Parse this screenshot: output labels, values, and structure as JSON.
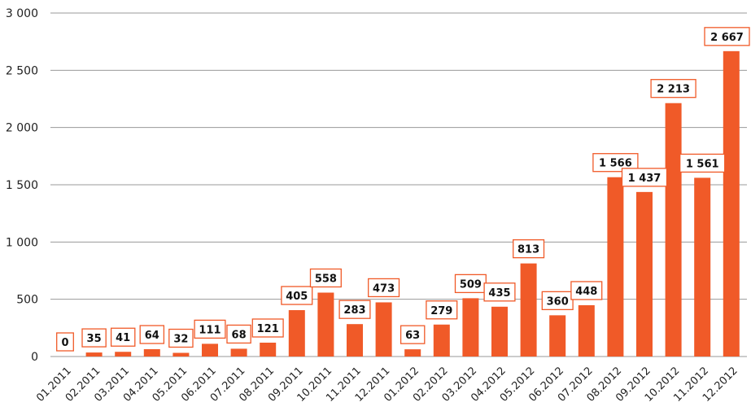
{
  "chart_data": {
    "type": "bar",
    "title": "",
    "xlabel": "",
    "ylabel": "",
    "categories": [
      "01.2011",
      "02.2011",
      "03.2011",
      "04.2011",
      "05.2011",
      "06.2011",
      "07.2011",
      "08.2011",
      "09.2011",
      "10.2011",
      "11.2011",
      "12.2011",
      "01.2012",
      "02.2012",
      "03.2012",
      "04.2012",
      "05.2012",
      "06.2012",
      "07.2012",
      "08.2012",
      "09.2012",
      "10.2012",
      "11.2012",
      "12.2012"
    ],
    "values": [
      0,
      35,
      41,
      64,
      32,
      111,
      68,
      121,
      405,
      558,
      283,
      473,
      63,
      279,
      509,
      435,
      813,
      360,
      448,
      1566,
      1437,
      2213,
      1561,
      2667
    ],
    "data_labels": [
      "0",
      "35",
      "41",
      "64",
      "32",
      "111",
      "68",
      "121",
      "405",
      "558",
      "283",
      "473",
      "63",
      "279",
      "509",
      "435",
      "813",
      "360",
      "448",
      "1 566",
      "1 437",
      "2 213",
      "1 561",
      "2 667"
    ],
    "ylim": [
      0,
      3000
    ],
    "yticks": [
      0,
      500,
      1000,
      1500,
      2000,
      2500,
      3000
    ],
    "ytick_labels": [
      "0",
      "500",
      "1 000",
      "1 500",
      "2 000",
      "2 500",
      "3 000"
    ],
    "grid": true,
    "bar_color": "#f05a28",
    "label_border_color": "#f05a28",
    "grid_color": "#999999"
  }
}
